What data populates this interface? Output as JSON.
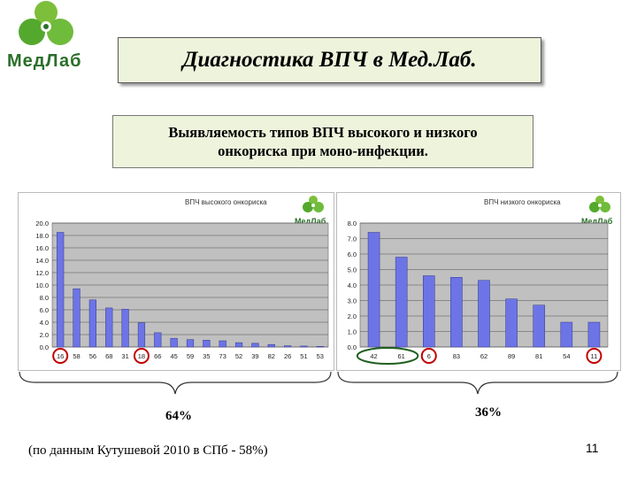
{
  "header": {
    "logo_text": "МедЛаб",
    "title": "Диагностика ВПЧ в Мед.Лаб."
  },
  "subtitle": {
    "line1": "Выявляемость типов ВПЧ высокого и низкого",
    "line2": "онкориска при моно-инфекции."
  },
  "colors": {
    "bar": "#6d74e6",
    "plot_bg": "#c0c0c0",
    "box_bg": "#eef3dc",
    "logo_green": "#2a6f2a",
    "circle_red": "#c00000",
    "ellipse_green": "#1f5f1f"
  },
  "chart_data": [
    {
      "type": "bar",
      "title": "ВПЧ высокого онкориска",
      "categories": [
        "16",
        "58",
        "56",
        "68",
        "31",
        "18",
        "66",
        "45",
        "59",
        "35",
        "73",
        "52",
        "39",
        "82",
        "26",
        "51",
        "53"
      ],
      "values": [
        18.5,
        9.4,
        7.6,
        6.3,
        6.1,
        3.9,
        2.3,
        1.4,
        1.2,
        1.1,
        1.0,
        0.7,
        0.6,
        0.4,
        0.2,
        0.15,
        0.1
      ],
      "ytick_labels": [
        "0.0",
        "2.0",
        "4.0",
        "6.0",
        "8.0",
        "10.0",
        "12.0",
        "14.0",
        "16.0",
        "18.0",
        "20.0"
      ],
      "ylim": [
        0,
        20
      ],
      "grid": true,
      "logo_text": "МедЛаб",
      "circled_categories": [
        "16",
        "18"
      ]
    },
    {
      "type": "bar",
      "title": "ВПЧ низкого онкориска",
      "categories": [
        "42",
        "61",
        "6",
        "83",
        "62",
        "89",
        "81",
        "54",
        "11"
      ],
      "values": [
        7.4,
        5.8,
        4.6,
        4.5,
        4.3,
        3.1,
        2.7,
        1.6,
        1.6
      ],
      "ytick_labels": [
        "0.0",
        "1.0",
        "2.0",
        "3.0",
        "4.0",
        "5.0",
        "6.0",
        "7.0",
        "8.0"
      ],
      "ylim": [
        0,
        8
      ],
      "grid": true,
      "logo_text": "МедЛаб",
      "circled_categories": [
        "6",
        "11"
      ]
    }
  ],
  "summary": {
    "left_percent": "64%",
    "right_percent": "36%"
  },
  "footnote": "(по данным Кутушевой 2010 в СПб - 58%)",
  "page_number": "11"
}
